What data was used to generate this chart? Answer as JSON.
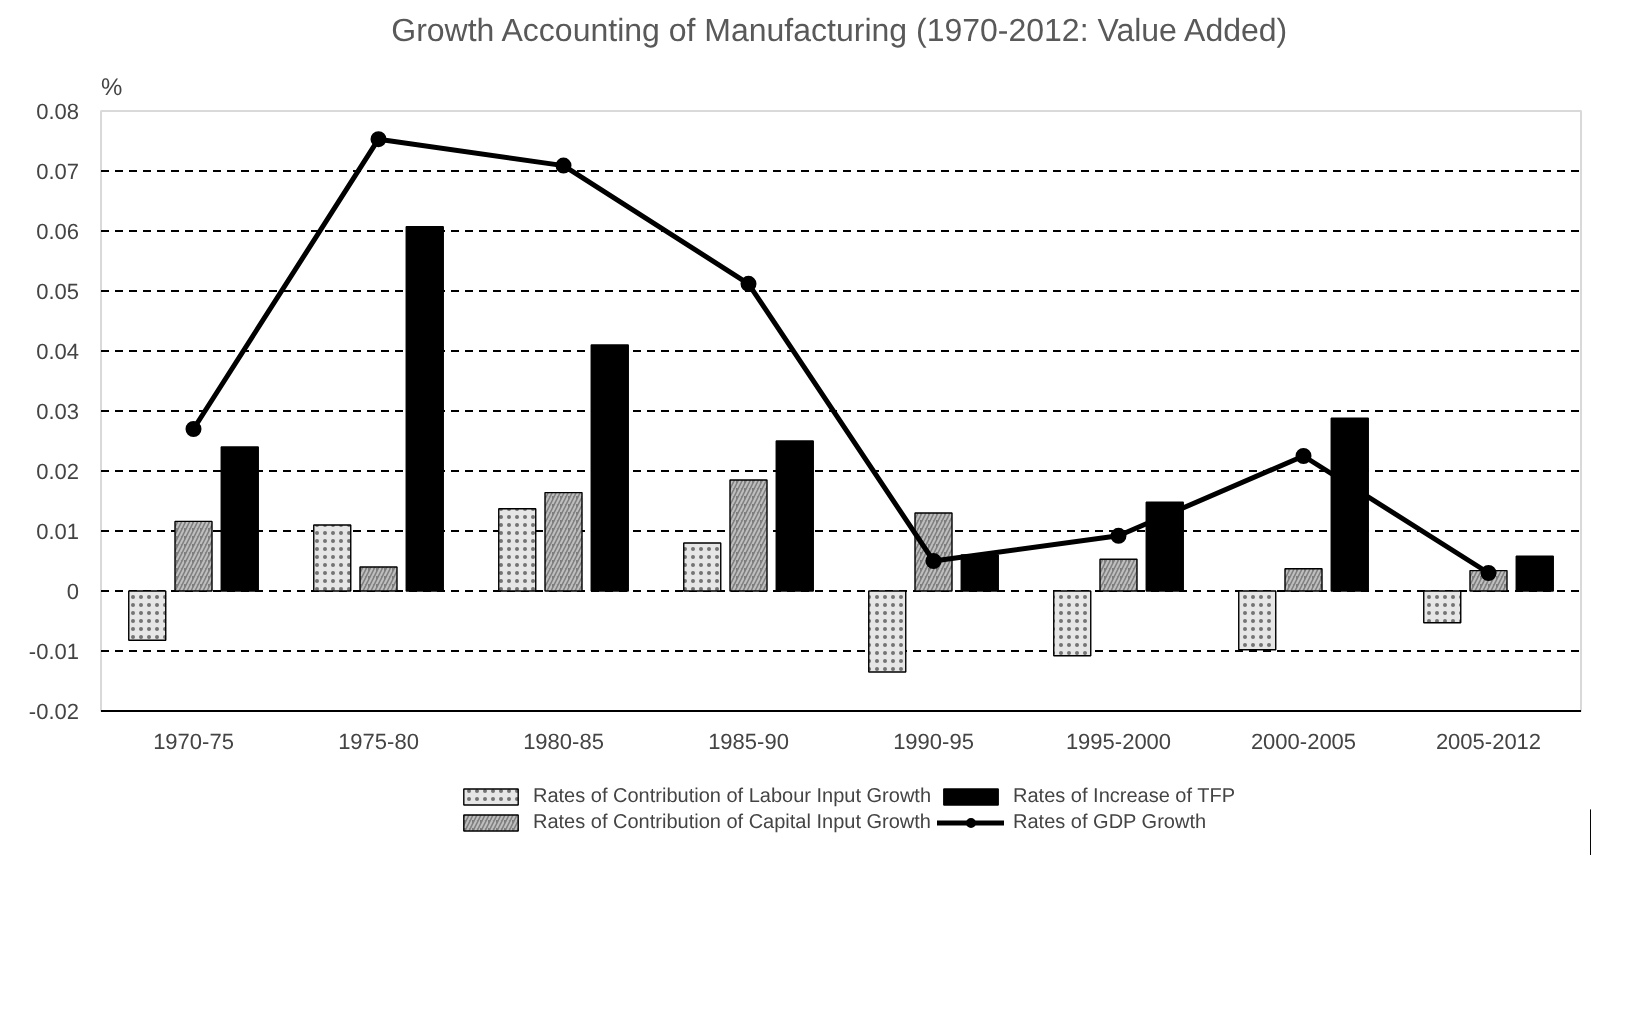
{
  "chart_data": {
    "type": "bar",
    "title": "Growth Accounting of Manufacturing (1970-2012: Value Added)",
    "ylabel": "%",
    "categories": [
      "1970-75",
      "1975-80",
      "1980-85",
      "1985-90",
      "1990-95",
      "1995-2000",
      "2000-2005",
      "2005-2012"
    ],
    "series": [
      {
        "name": "Rates of Contribution of Labour Input Growth",
        "color": "#e6e6e6",
        "values": [
          -0.0082,
          0.011,
          0.0137,
          0.008,
          -0.0135,
          -0.0108,
          -0.0098,
          -0.0053
        ]
      },
      {
        "name": "Rates of Contribution of Capital Input Growth",
        "color": "#7f7f7f",
        "values": [
          0.0116,
          0.004,
          0.0164,
          0.0185,
          0.013,
          0.0053,
          0.0037,
          0.0034
        ]
      },
      {
        "name": "Rates of Increase of TFP",
        "color": "#000000",
        "values": [
          0.024,
          0.0607,
          0.041,
          0.025,
          0.006,
          0.0148,
          0.0288,
          0.0058
        ]
      },
      {
        "name": "Rates of GDP Growth",
        "color": "#000000",
        "type": "line",
        "marker": "circle",
        "values": [
          0.027,
          0.0753,
          0.0709,
          0.0512,
          0.005,
          0.0092,
          0.0225,
          0.003
        ]
      }
    ],
    "ylim": [
      -0.02,
      0.08
    ],
    "yticks": [
      -0.02,
      -0.01,
      0,
      0.01,
      0.02,
      0.03,
      0.04,
      0.05,
      0.06,
      0.07,
      0.08
    ],
    "grid": "y",
    "legend": "bottom"
  }
}
